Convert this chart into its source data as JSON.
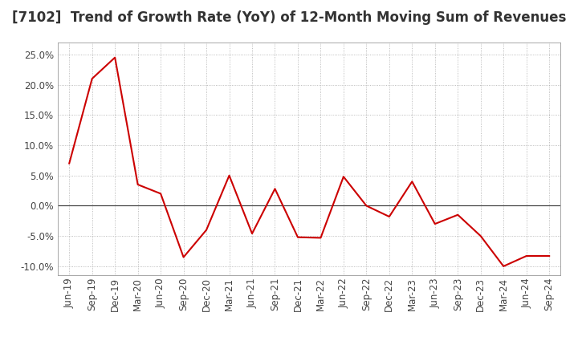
{
  "title": "[7102]  Trend of Growth Rate (YoY) of 12-Month Moving Sum of Revenues",
  "x_labels": [
    "Jun-19",
    "Sep-19",
    "Dec-19",
    "Mar-20",
    "Jun-20",
    "Sep-20",
    "Dec-20",
    "Mar-21",
    "Jun-21",
    "Sep-21",
    "Dec-21",
    "Mar-22",
    "Jun-22",
    "Sep-22",
    "Dec-22",
    "Mar-23",
    "Jun-23",
    "Sep-23",
    "Dec-23",
    "Mar-24",
    "Jun-24",
    "Sep-24"
  ],
  "y_values": [
    0.07,
    0.21,
    0.245,
    0.035,
    0.02,
    -0.085,
    -0.04,
    0.05,
    -0.046,
    0.028,
    -0.052,
    -0.053,
    0.048,
    0.0,
    -0.018,
    0.04,
    -0.03,
    -0.015,
    -0.05,
    -0.1,
    -0.083,
    -0.083
  ],
  "line_color": "#cc0000",
  "background_color": "#ffffff",
  "grid_color": "#aaaaaa",
  "zero_line_color": "#333333",
  "ylim": [
    -0.115,
    0.27
  ],
  "yticks": [
    -0.1,
    -0.05,
    0.0,
    0.05,
    0.1,
    0.15,
    0.2,
    0.25
  ],
  "title_fontsize": 12,
  "tick_fontsize": 8.5,
  "title_color": "#333333"
}
